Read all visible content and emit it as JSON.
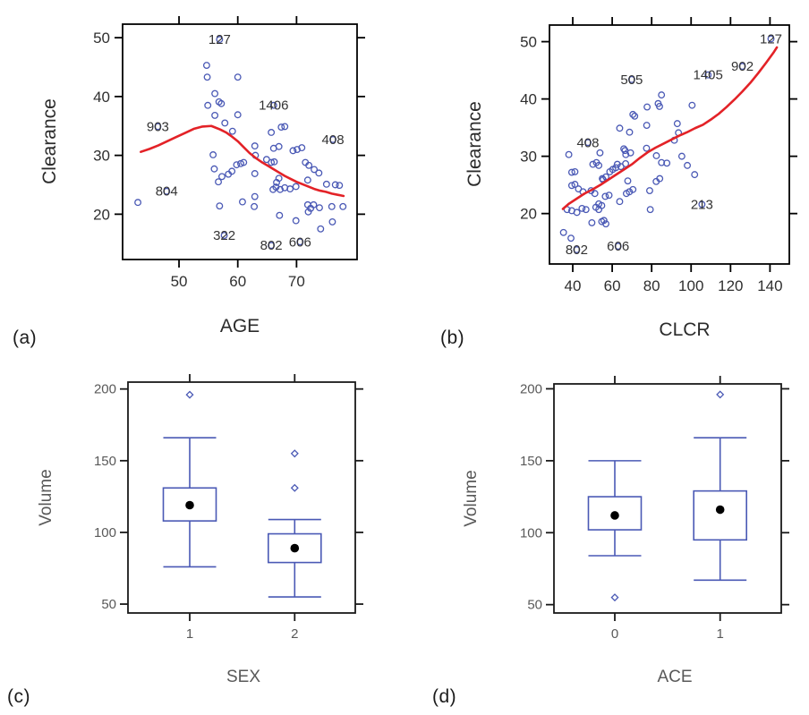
{
  "figure": {
    "background": "#ffffff",
    "point_color": "#4a59b5",
    "loess_color": "#e32227",
    "box_color": "#4a59b5",
    "median_dot_color": "#000000",
    "frame_color_top": "#000000",
    "frame_color_bottom": "#1a1a1a",
    "tick_label_color_top": "#2f2f2f",
    "tick_label_color_bottom": "#595959",
    "point_label_color": "#333333"
  },
  "panel_letters": {
    "a": "(a)",
    "b": "(b)",
    "c": "(c)",
    "d": "(d)"
  },
  "chart_data": [
    {
      "id": "a",
      "type": "scatter",
      "panel_letter": "(a)",
      "xlabel": "AGE",
      "ylabel": "Clearance",
      "xlim": [
        40.4,
        80.3
      ],
      "ylim": [
        12.3,
        52.3
      ],
      "xticks": [
        50,
        60,
        70
      ],
      "yticks": [
        20,
        30,
        40,
        50
      ],
      "grid": false,
      "legend": "none",
      "points": [
        [
          54.7,
          45.3
        ],
        [
          54.8,
          43.3
        ],
        [
          60.0,
          43.3
        ],
        [
          56.1,
          40.5
        ],
        [
          56.8,
          39.1
        ],
        [
          57.2,
          38.8
        ],
        [
          54.9,
          38.5
        ],
        [
          56.1,
          36.8
        ],
        [
          60.0,
          36.9
        ],
        [
          57.8,
          35.5
        ],
        [
          59.1,
          34.1
        ],
        [
          67.4,
          34.8
        ],
        [
          68.0,
          34.9
        ],
        [
          65.7,
          33.9
        ],
        [
          55.8,
          30.1
        ],
        [
          56.0,
          27.7
        ],
        [
          62.9,
          31.6
        ],
        [
          66.1,
          31.2
        ],
        [
          67.0,
          31.5
        ],
        [
          69.4,
          30.8
        ],
        [
          70.1,
          31.0
        ],
        [
          70.9,
          31.3
        ],
        [
          63.0,
          30.0
        ],
        [
          64.9,
          29.3
        ],
        [
          65.7,
          28.8
        ],
        [
          66.2,
          28.9
        ],
        [
          60.5,
          28.6
        ],
        [
          61.0,
          28.8
        ],
        [
          59.8,
          28.4
        ],
        [
          59.0,
          27.3
        ],
        [
          58.4,
          26.8
        ],
        [
          71.5,
          28.8
        ],
        [
          72.1,
          28.3
        ],
        [
          73.0,
          27.6
        ],
        [
          73.8,
          27.0
        ],
        [
          56.7,
          25.5
        ],
        [
          57.3,
          26.4
        ],
        [
          62.9,
          26.9
        ],
        [
          67.0,
          26.1
        ],
        [
          66.6,
          25.4
        ],
        [
          67.2,
          24.2
        ],
        [
          66.0,
          24.2
        ],
        [
          66.5,
          24.6
        ],
        [
          68.0,
          24.5
        ],
        [
          68.9,
          24.3
        ],
        [
          69.9,
          24.7
        ],
        [
          71.9,
          25.8
        ],
        [
          75.1,
          25.1
        ],
        [
          76.6,
          25.0
        ],
        [
          77.3,
          24.9
        ],
        [
          62.9,
          23.0
        ],
        [
          56.9,
          21.4
        ],
        [
          60.8,
          22.1
        ],
        [
          62.8,
          21.3
        ],
        [
          71.9,
          21.6
        ],
        [
          72.4,
          21.0
        ],
        [
          72.9,
          21.6
        ],
        [
          73.9,
          21.1
        ],
        [
          76.0,
          21.3
        ],
        [
          77.9,
          21.3
        ],
        [
          67.1,
          19.8
        ],
        [
          69.9,
          18.9
        ],
        [
          72.0,
          20.4
        ],
        [
          74.1,
          17.5
        ],
        [
          76.1,
          18.7
        ],
        [
          43.0,
          22.0
        ]
      ],
      "labeled_points": [
        {
          "label": "127",
          "x": 56.9,
          "y": 49.7
        },
        {
          "label": "903",
          "x": 46.4,
          "y": 34.9
        },
        {
          "label": "1406",
          "x": 66.1,
          "y": 38.5
        },
        {
          "label": "408",
          "x": 76.2,
          "y": 32.7
        },
        {
          "label": "804",
          "x": 47.9,
          "y": 23.9
        },
        {
          "label": "322",
          "x": 57.7,
          "y": 16.4
        },
        {
          "label": "802",
          "x": 65.7,
          "y": 14.7
        },
        {
          "label": "606",
          "x": 70.6,
          "y": 15.3
        }
      ],
      "loess": [
        [
          43.5,
          30.6
        ],
        [
          45,
          31.1
        ],
        [
          46.5,
          31.7
        ],
        [
          48,
          32.4
        ],
        [
          49.5,
          33.1
        ],
        [
          51,
          33.8
        ],
        [
          52.5,
          34.5
        ],
        [
          54,
          34.9
        ],
        [
          55.5,
          35.0
        ],
        [
          57,
          34.4
        ],
        [
          58,
          33.9
        ],
        [
          59,
          33.2
        ],
        [
          60,
          32.4
        ],
        [
          61,
          31.4
        ],
        [
          62,
          30.4
        ],
        [
          63,
          29.6
        ],
        [
          64,
          28.9
        ],
        [
          65,
          28.3
        ],
        [
          66,
          27.7
        ],
        [
          67,
          27.1
        ],
        [
          68,
          26.5
        ],
        [
          69,
          26.0
        ],
        [
          70,
          25.5
        ],
        [
          71,
          25.1
        ],
        [
          72,
          24.7
        ],
        [
          73,
          24.3
        ],
        [
          74,
          24.0
        ],
        [
          75,
          23.8
        ],
        [
          76,
          23.5
        ],
        [
          77,
          23.3
        ],
        [
          78,
          23.1
        ]
      ]
    },
    {
      "id": "b",
      "type": "scatter",
      "panel_letter": "(b)",
      "xlabel": "CLCR",
      "ylabel": "Clearance",
      "xlim": [
        28.2,
        149.8
      ],
      "ylim": [
        11.2,
        52.9
      ],
      "xticks": [
        40,
        60,
        80,
        100,
        120,
        140
      ],
      "yticks": [
        20,
        30,
        40,
        50
      ],
      "grid": false,
      "legend": "none",
      "points": [
        [
          85.0,
          40.7
        ],
        [
          83.3,
          39.2
        ],
        [
          84.0,
          38.7
        ],
        [
          77.7,
          38.6
        ],
        [
          100.5,
          38.9
        ],
        [
          70.5,
          37.3
        ],
        [
          71.4,
          37.0
        ],
        [
          77.5,
          35.4
        ],
        [
          63.8,
          34.9
        ],
        [
          68.8,
          34.2
        ],
        [
          93.0,
          35.7
        ],
        [
          93.6,
          34.1
        ],
        [
          91.5,
          32.8
        ],
        [
          38.0,
          30.3
        ],
        [
          53.8,
          30.6
        ],
        [
          52.0,
          28.9
        ],
        [
          50.2,
          28.6
        ],
        [
          53.2,
          28.4
        ],
        [
          39.5,
          27.2
        ],
        [
          41.1,
          27.3
        ],
        [
          66.8,
          28.7
        ],
        [
          65.9,
          31.3
        ],
        [
          66.5,
          31.0
        ],
        [
          66.9,
          30.3
        ],
        [
          69.3,
          30.6
        ],
        [
          62.6,
          28.6
        ],
        [
          64.4,
          28.2
        ],
        [
          55.0,
          26.1
        ],
        [
          55.4,
          25.9
        ],
        [
          56.8,
          26.4
        ],
        [
          58.8,
          27.3
        ],
        [
          60.3,
          27.7
        ],
        [
          61.8,
          28.0
        ],
        [
          39.5,
          24.9
        ],
        [
          41.1,
          25.1
        ],
        [
          42.9,
          24.3
        ],
        [
          45.2,
          23.8
        ],
        [
          49.3,
          24.0
        ],
        [
          51.2,
          23.5
        ],
        [
          53.2,
          21.7
        ],
        [
          54.7,
          21.4
        ],
        [
          56.5,
          23.0
        ],
        [
          58.4,
          23.2
        ],
        [
          63.8,
          22.1
        ],
        [
          67.9,
          25.7
        ],
        [
          70.5,
          24.2
        ],
        [
          68.7,
          23.8
        ],
        [
          67.2,
          23.5
        ],
        [
          82.3,
          25.6
        ],
        [
          84.1,
          26.1
        ],
        [
          79.0,
          24.0
        ],
        [
          79.3,
          20.7
        ],
        [
          37.1,
          20.7
        ],
        [
          39.5,
          20.5
        ],
        [
          42.1,
          20.2
        ],
        [
          44.7,
          20.9
        ],
        [
          46.7,
          20.7
        ],
        [
          51.7,
          21.1
        ],
        [
          53.2,
          20.7
        ],
        [
          49.7,
          18.4
        ],
        [
          54.7,
          18.6
        ],
        [
          55.8,
          18.8
        ],
        [
          56.8,
          18.2
        ],
        [
          35.3,
          16.7
        ],
        [
          39.1,
          15.7
        ],
        [
          95.3,
          30.0
        ],
        [
          98.1,
          28.4
        ],
        [
          101.8,
          26.8
        ],
        [
          85.0,
          28.9
        ],
        [
          87.7,
          28.8
        ],
        [
          77.4,
          31.4
        ],
        [
          82.4,
          30.1
        ]
      ],
      "labeled_points": [
        {
          "label": "127",
          "x": 140.5,
          "y": 50.5
        },
        {
          "label": "902",
          "x": 126.0,
          "y": 45.7
        },
        {
          "label": "1405",
          "x": 108.6,
          "y": 44.2
        },
        {
          "label": "505",
          "x": 69.9,
          "y": 43.4
        },
        {
          "label": "408",
          "x": 47.7,
          "y": 32.4
        },
        {
          "label": "213",
          "x": 105.5,
          "y": 21.6
        },
        {
          "label": "802",
          "x": 42.0,
          "y": 13.7
        },
        {
          "label": "606",
          "x": 63.0,
          "y": 14.3
        }
      ],
      "loess": [
        [
          35,
          20.8
        ],
        [
          38,
          21.7
        ],
        [
          42,
          22.6
        ],
        [
          46,
          23.5
        ],
        [
          50,
          24.2
        ],
        [
          54,
          25.0
        ],
        [
          58,
          25.9
        ],
        [
          62,
          26.8
        ],
        [
          66,
          27.7
        ],
        [
          70,
          28.6
        ],
        [
          74,
          29.7
        ],
        [
          78,
          30.7
        ],
        [
          82,
          31.5
        ],
        [
          86,
          32.2
        ],
        [
          90,
          32.9
        ],
        [
          94,
          33.6
        ],
        [
          98,
          34.2
        ],
        [
          102,
          34.9
        ],
        [
          106,
          35.5
        ],
        [
          110,
          36.4
        ],
        [
          114,
          37.4
        ],
        [
          118,
          38.6
        ],
        [
          122,
          39.9
        ],
        [
          126,
          41.3
        ],
        [
          130,
          42.8
        ],
        [
          134,
          44.5
        ],
        [
          138,
          46.3
        ],
        [
          142,
          48.2
        ],
        [
          143.5,
          49.0
        ]
      ]
    },
    {
      "id": "c",
      "type": "boxplot",
      "panel_letter": "(c)",
      "xlabel": "SEX",
      "ylabel": "Volume",
      "ylim": [
        43.8,
        204.8
      ],
      "yticks": [
        50,
        100,
        150,
        200
      ],
      "grid": false,
      "groups": [
        {
          "label": "1",
          "whisker_low": 76,
          "q1": 108,
          "median": 119,
          "q3": 131,
          "whisker_high": 166,
          "outliers": [
            196
          ]
        },
        {
          "label": "2",
          "whisker_low": 55,
          "q1": 79,
          "median": 89,
          "q3": 99,
          "whisker_high": 109,
          "outliers": [
            131,
            155
          ]
        }
      ]
    },
    {
      "id": "d",
      "type": "boxplot",
      "panel_letter": "(d)",
      "xlabel": "ACE",
      "ylabel": "Volume",
      "ylim": [
        44.2,
        203.4
      ],
      "yticks": [
        50,
        100,
        150,
        200
      ],
      "grid": false,
      "groups": [
        {
          "label": "0",
          "whisker_low": 84,
          "q1": 102,
          "median": 112,
          "q3": 125,
          "whisker_high": 150,
          "outliers": [
            55
          ]
        },
        {
          "label": "1",
          "whisker_low": 67,
          "q1": 95,
          "median": 116,
          "q3": 129,
          "whisker_high": 166,
          "outliers": [
            196
          ]
        }
      ]
    }
  ]
}
